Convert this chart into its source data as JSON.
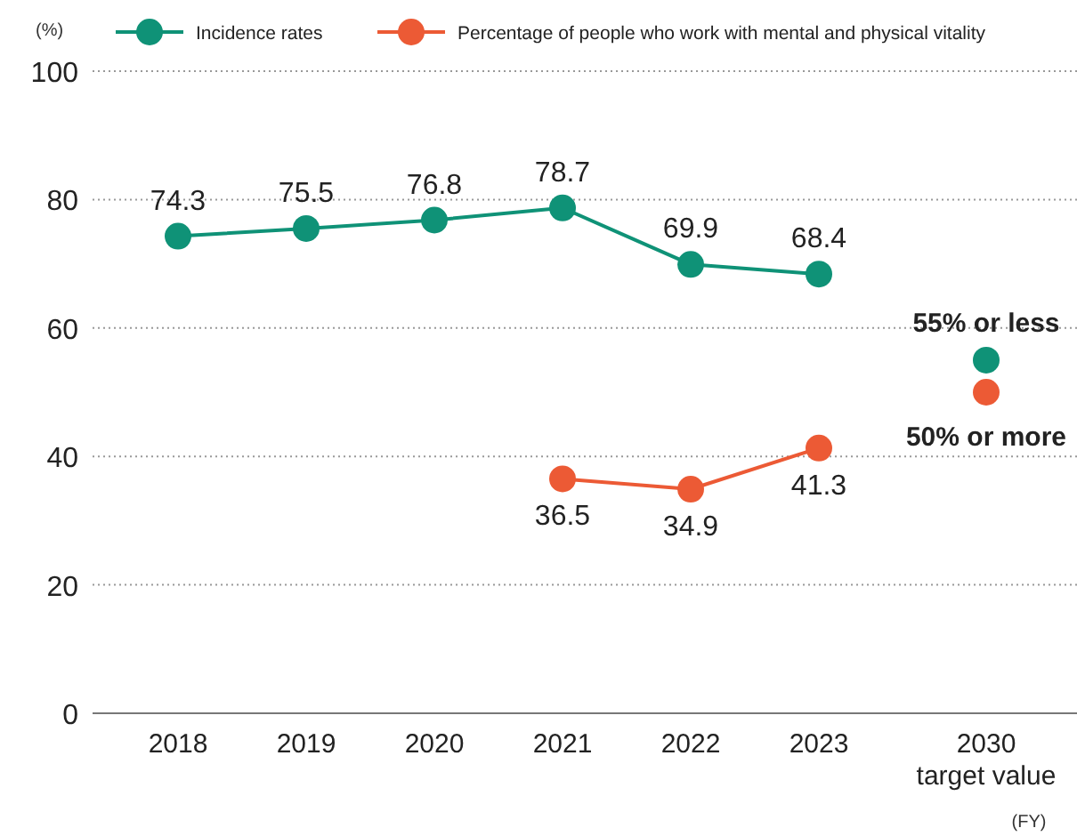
{
  "chart_data": {
    "type": "line",
    "ylabel": "(%)",
    "xlabel": "(FY)",
    "categories": [
      "2018",
      "2019",
      "2020",
      "2021",
      "2022",
      "2023",
      "2030 target value"
    ],
    "ylim": [
      0,
      100
    ],
    "yticks": [
      0,
      20,
      40,
      60,
      80,
      100
    ],
    "grid": "y",
    "legend": "top",
    "marker": "circle",
    "data_labels": true,
    "series": [
      {
        "name": "Incidence rates",
        "color": "#0f9277",
        "values": [
          74.3,
          75.5,
          76.8,
          78.7,
          69.9,
          68.4,
          null
        ]
      },
      {
        "name": "Percentage of people who work with mental and physical vitality",
        "color": "#ec5a35",
        "values": [
          null,
          null,
          null,
          36.5,
          34.9,
          41.3,
          null
        ]
      },
      {
        "type": "scatter",
        "color": "#0f9277",
        "x": [
          "2030 target value"
        ],
        "values": [
          55
        ],
        "value_labels": [
          "55% or less"
        ]
      },
      {
        "type": "scatter",
        "color": "#ec5a35",
        "x": [
          "2030 target value"
        ],
        "values": [
          50
        ],
        "value_labels": [
          "50% or more"
        ]
      }
    ]
  }
}
